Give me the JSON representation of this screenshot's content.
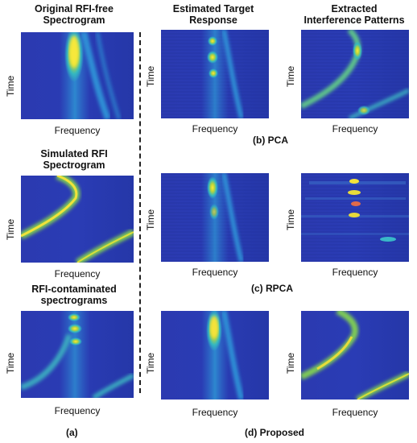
{
  "headers": {
    "h1": [
      "Original RFI-free",
      "Spectrogram"
    ],
    "h2": [
      "Estimated Target",
      "Response"
    ],
    "h3": [
      "Extracted",
      "Interference Patterns"
    ],
    "h4": [
      "Simulated RFI",
      "Spectrogram"
    ],
    "h5": [
      "RFI-contaminated",
      "spectrograms"
    ]
  },
  "axis": {
    "x": "Frequency",
    "y": "Time"
  },
  "captions": {
    "pca": "(b) PCA",
    "rpca": "(c) RPCA",
    "proposed": "(d) Proposed",
    "a": "(a)"
  },
  "colors": {
    "background": "#2a3aa8",
    "dark": "#1c2a8c",
    "cyan": "#39b8c8",
    "green": "#7fcc55",
    "yellow": "#f5e23a"
  }
}
